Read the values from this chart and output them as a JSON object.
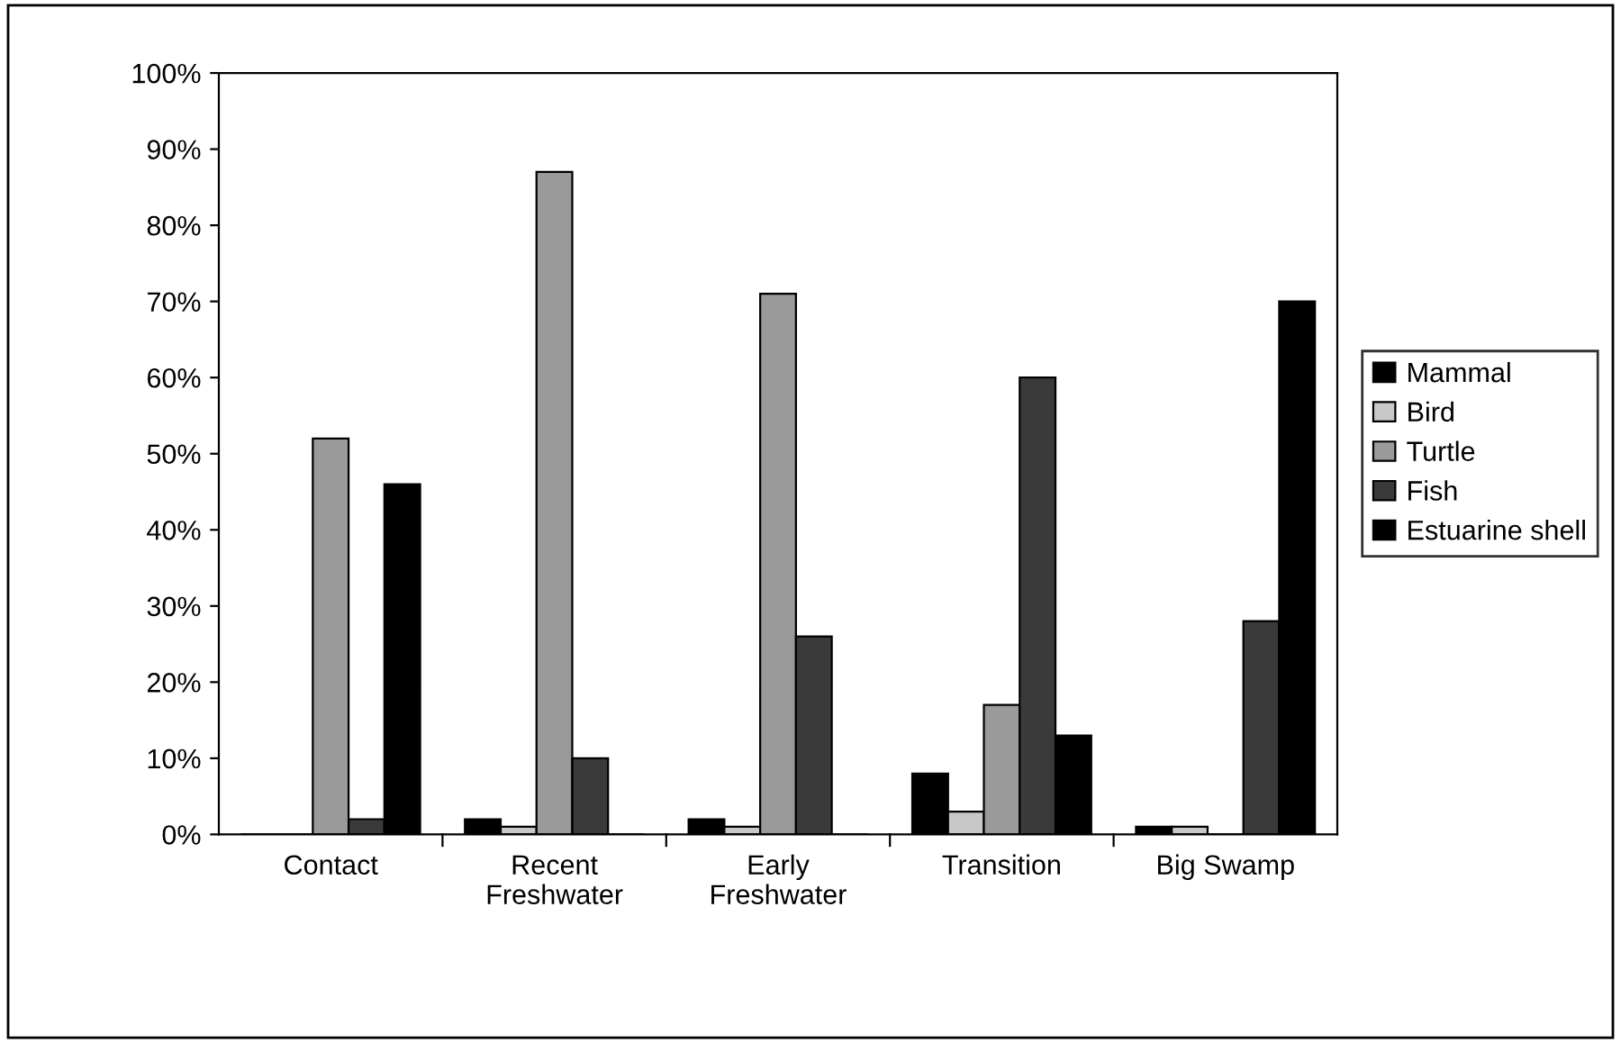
{
  "chart_data": {
    "type": "bar",
    "categories": [
      "Contact",
      "Recent\nFreshwater",
      "Early\nFreshwater",
      "Transition",
      "Big Swamp"
    ],
    "series": [
      {
        "name": "Mammal",
        "color": "#000000",
        "values": [
          0,
          2,
          2,
          8,
          1
        ]
      },
      {
        "name": "Bird",
        "color": "#c8c8c8",
        "values": [
          0,
          1,
          1,
          3,
          1
        ]
      },
      {
        "name": "Turtle",
        "color": "#9a9a9a",
        "values": [
          52,
          87,
          71,
          17,
          0
        ]
      },
      {
        "name": "Fish",
        "color": "#3a3a3a",
        "values": [
          2,
          10,
          26,
          60,
          28
        ]
      },
      {
        "name": "Estuarine shell",
        "color": "#000000",
        "values": [
          46,
          0,
          0,
          13,
          70
        ]
      }
    ],
    "ylim": [
      0,
      100
    ],
    "yticks": [
      {
        "value": 0,
        "label": "0%"
      },
      {
        "value": 10,
        "label": "10%"
      },
      {
        "value": 20,
        "label": "20%"
      },
      {
        "value": 30,
        "label": "30%"
      },
      {
        "value": 40,
        "label": "40%"
      },
      {
        "value": 50,
        "label": "50%"
      },
      {
        "value": 60,
        "label": "60%"
      },
      {
        "value": 70,
        "label": "70%"
      },
      {
        "value": 80,
        "label": "80%"
      },
      {
        "value": 90,
        "label": "90%"
      },
      {
        "value": 100,
        "label": "100%"
      }
    ],
    "grid": false,
    "legend": "right"
  }
}
